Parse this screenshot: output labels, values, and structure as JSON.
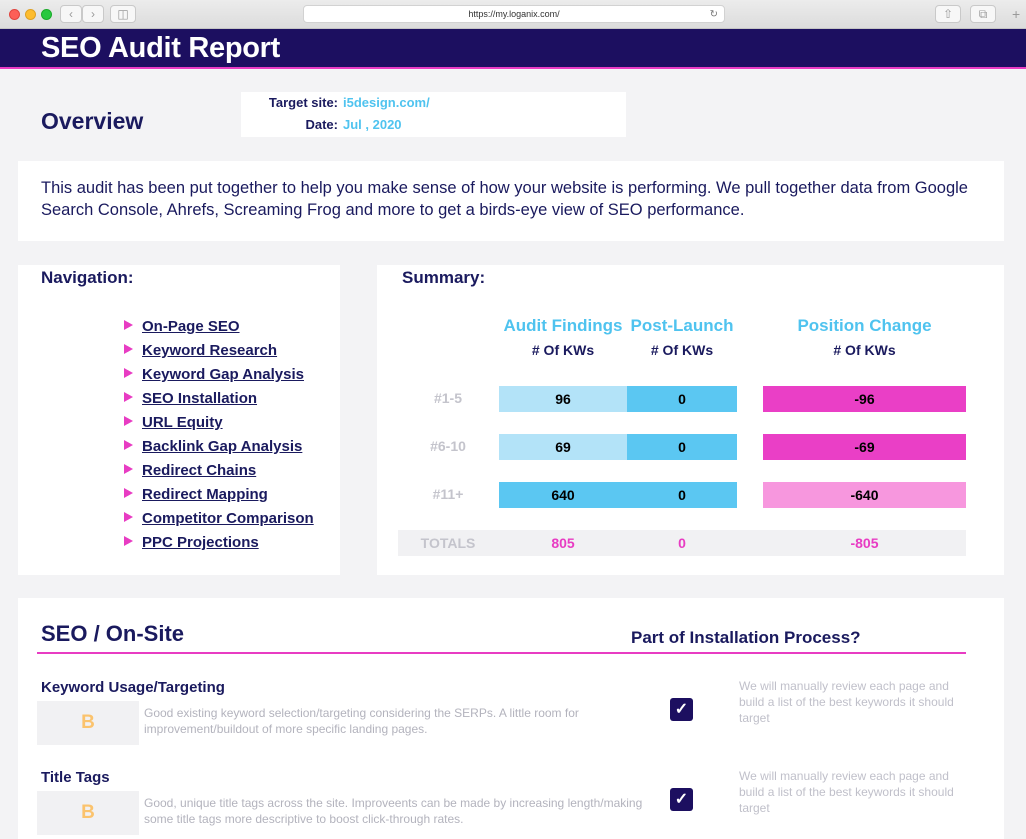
{
  "browser": {
    "url": "https://my.loganix.com/"
  },
  "header": {
    "title": "SEO Audit Report"
  },
  "overview": {
    "title": "Overview",
    "target_label": "Target site:",
    "target_value": "i5design.com/",
    "date_label": "Date:",
    "date_value": "Jul , 2020",
    "intro": "This audit has been put together to help you make sense of how your website is performing. We pull together data from Google Search Console, Ahrefs, Screaming Frog and more to get a birds-eye view of SEO performance."
  },
  "navigation": {
    "title": "Navigation:",
    "items": [
      "On-Page SEO",
      "Keyword Research",
      "Keyword Gap Analysis",
      "SEO Installation",
      "URL Equity",
      "Backlink Gap Analysis",
      "Redirect Chains",
      "Redirect Mapping",
      "Competitor Comparison",
      "PPC Projections"
    ]
  },
  "summary": {
    "title": "Summary:",
    "columns": [
      {
        "title": "Audit Findings",
        "sub": "# Of KWs"
      },
      {
        "title": "Post-Launch",
        "sub": "# Of KWs"
      },
      {
        "title": "Position Change",
        "sub": "# Of KWs"
      }
    ],
    "rows": [
      {
        "label": "#1-5",
        "audit": "96",
        "post": "0",
        "change": "-96"
      },
      {
        "label": "#6-10",
        "audit": "69",
        "post": "0",
        "change": "-69"
      },
      {
        "label": "#11+",
        "audit": "640",
        "post": "0",
        "change": "-640"
      }
    ],
    "totals": {
      "label": "TOTALS",
      "audit": "805",
      "post": "0",
      "change": "-805"
    },
    "colors": {
      "audit_light": "#b3e3f8",
      "audit_dark": "#5bc7f2",
      "post": "#5bc7f2",
      "change_dark": "#ea3fc6",
      "change_light": "#f797de"
    }
  },
  "seo_onsite": {
    "title": "SEO / On-Site",
    "installation_header": "Part of Installation Process?",
    "items": [
      {
        "title": "Keyword Usage/Targeting",
        "grade": "B",
        "description": "Good existing keyword selection/targeting considering the SERPs. A little room for improvement/buildout of more specific landing pages.",
        "checked": true,
        "note": "We will manually review each page and build a list of the best keywords it should target"
      },
      {
        "title": "Title Tags",
        "grade": "B",
        "description": "Good, unique title tags across the site. Improveents can be made by increasing length/making  some title tags more descriptive to boost click-through rates.",
        "checked": true,
        "note": "We will manually review each page and build a list of the best keywords it should target"
      }
    ]
  }
}
